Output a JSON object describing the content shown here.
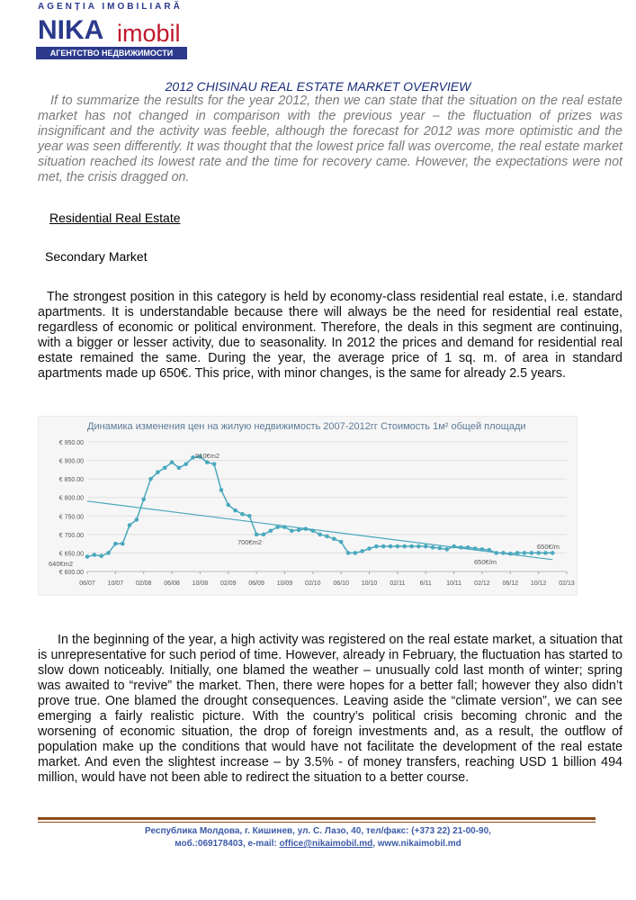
{
  "header": {
    "agency": "AGENȚIA IMOBILIARĂ",
    "brand": "NIKA",
    "brand_suffix": "imobil",
    "tagline": "АГЕНТСТВО НЕДВИЖИМОСТИ"
  },
  "title": "2012 CHISINAU REAL ESTATE MARKET OVERVIEW",
  "intro": "If to summarize the results for the year 2012, then we can state that the situation on the real estate market has not changed in comparison with the previous year – the fluctuation of prizes was insignificant and the activity was feeble, although the forecast for 2012 was more optimistic and the year was seen differently. It was thought that the lowest price fall was overcome, the real estate market situation reached its lowest rate and the time for recovery came. However, the expectations were not met, the crisis dragged on.",
  "section": "Residential Real Estate",
  "subsection": "Secondary Market",
  "paragraph1": "The strongest position in this category is held by economy-class residential real estate, i.e. standard apartments. It is understandable because there will always be the need for residential real estate, regardless of economic or political environment. Therefore, the deals in this segment are continuing, with a bigger or lesser activity, due to seasonality. In 2012 the prices and demand for residential real estate remained the same. During the year, the average price of 1 sq. m. of area in standard apartments made up 650€. This price, with minor changes, is the same for already 2.5 years.",
  "chart_data": {
    "type": "line",
    "title": "Динамика изменения цен на жилую недвижимость 2007-2012гг Стоимость 1м² общей площади",
    "x": [
      "06/07",
      "07/07",
      "08/07",
      "09/07",
      "10/07",
      "11/07",
      "12/07",
      "01/08",
      "02/08",
      "03/08",
      "04/08",
      "05/08",
      "06/08",
      "07/08",
      "08/08",
      "09/08",
      "10/08",
      "11/08",
      "12/08",
      "01/09",
      "02/09",
      "03/09",
      "04/09",
      "05/09",
      "06/09",
      "07/09",
      "08/09",
      "09/09",
      "10/09",
      "11/09",
      "12/09",
      "01/10",
      "02/10",
      "03/10",
      "04/10",
      "05/10",
      "06/10",
      "07/10",
      "08/10",
      "09/10",
      "10/10",
      "11/10",
      "12/10",
      "01/11",
      "02/11",
      "03/11",
      "04/11",
      "05/11",
      "06/11",
      "07/11",
      "08/11",
      "09/11",
      "10/11",
      "11/11",
      "12/11",
      "01/12",
      "02/12",
      "03/12",
      "04/12",
      "05/12",
      "06/12",
      "07/12",
      "08/12",
      "09/12",
      "10/12",
      "11/12",
      "12/12"
    ],
    "series": [
      {
        "color": "#4aa8bd",
        "values": [
          640,
          645,
          642,
          650,
          675,
          675,
          725,
          740,
          795,
          850,
          868,
          880,
          895,
          880,
          890,
          908,
          910,
          895,
          890,
          820,
          780,
          765,
          755,
          750,
          700,
          700,
          710,
          720,
          720,
          710,
          712,
          715,
          710,
          700,
          695,
          688,
          680,
          650,
          650,
          655,
          662,
          668,
          668,
          668,
          668,
          668,
          668,
          668,
          668,
          665,
          663,
          660,
          668,
          665,
          665,
          662,
          660,
          658,
          650,
          650,
          648,
          650,
          650,
          650,
          650,
          650,
          650
        ]
      },
      {
        "color": "#4aa8bd",
        "x": [
          "06/07",
          "12/12"
        ],
        "values": [
          790,
          632
        ]
      }
    ],
    "annotations": [
      "910€m2",
      "640€m2",
      "700€m2",
      "650€/m",
      "650€/m"
    ],
    "xlim": [
      "06/07",
      "02/13"
    ],
    "xticks": [
      "06/07",
      "10/07",
      "02/08",
      "06/08",
      "10/08",
      "02/09",
      "06/09",
      "10/09",
      "02/10",
      "06/10",
      "10/10",
      "02/11",
      "6/11",
      "10/11",
      "02/12",
      "06/12",
      "10/12",
      "02/13"
    ],
    "ylim": [
      600,
      950
    ],
    "yticks": [
      {
        "value": 600,
        "label": "€ 600.00"
      },
      {
        "value": 650,
        "label": "€ 650.00"
      },
      {
        "value": 700,
        "label": "€ 700.00"
      },
      {
        "value": 750,
        "label": "€ 750.00"
      },
      {
        "value": 800,
        "label": "€ 800.00"
      },
      {
        "value": 850,
        "label": "€ 850.00"
      },
      {
        "value": 900,
        "label": "€ 900.00"
      },
      {
        "value": 950,
        "label": "€ 950.00"
      }
    ],
    "grid": true
  },
  "paragraph2": "In the beginning of the year, a high activity was registered on the real estate market, a situation that is unrepresentative for such period of time. However, already in February, the fluctuation has started to slow down noticeably. Initially, one blamed the weather – unusually cold last month of winter; spring was awaited to “revive” the market. Then, there were hopes for a better fall; however they also didn’t prove true. One blamed the drought consequences. Leaving aside the “climate version”, we can see emerging a fairly realistic picture. With the country’s political crisis becoming chronic and the worsening of economic situation, the drop of foreign investments and, as a result, the outflow of population make up the conditions that would have not facilitate the development of the real estate market. And even the slightest increase – by 3.5% - of money transfers, reaching USD 1 billion 494 million, would have not been able to redirect the situation to a better course.",
  "footer": {
    "line1": "Республика Молдова, г. Кишинев, ул. С. Лазо, 40, тел/факс: (+373 22) 21-00-90,",
    "line2_prefix": "моб.:069178403, e-mail: ",
    "email": "office@nikaimobil.md",
    "line2_suffix": ", www.nikaimobil.md"
  }
}
